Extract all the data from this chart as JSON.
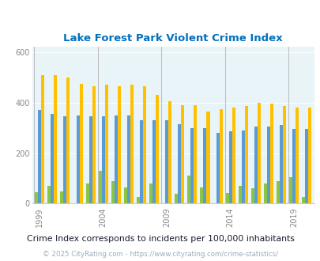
{
  "title": "Lake Forest Park Violent Crime Index",
  "subtitle": "Crime Index corresponds to incidents per 100,000 inhabitants",
  "footer": "© 2025 CityRating.com - https://www.cityrating.com/crime-statistics/",
  "years": [
    1999,
    2000,
    2001,
    2002,
    2003,
    2004,
    2005,
    2006,
    2007,
    2008,
    2009,
    2010,
    2011,
    2012,
    2013,
    2014,
    2015,
    2016,
    2017,
    2018,
    2019,
    2020
  ],
  "lake_forest_park": [
    45,
    70,
    48,
    0,
    80,
    130,
    90,
    65,
    25,
    80,
    0,
    40,
    110,
    65,
    0,
    43,
    70,
    60,
    80,
    90,
    105,
    25
  ],
  "washington": [
    370,
    355,
    345,
    350,
    345,
    345,
    350,
    350,
    330,
    330,
    330,
    315,
    300,
    300,
    280,
    285,
    290,
    305,
    305,
    310,
    295,
    295
  ],
  "national": [
    510,
    510,
    500,
    475,
    465,
    470,
    465,
    470,
    465,
    430,
    405,
    390,
    390,
    365,
    375,
    380,
    385,
    400,
    395,
    385,
    380,
    380
  ],
  "ylim": [
    0,
    620
  ],
  "yticks": [
    0,
    200,
    400,
    600
  ],
  "label_years": [
    1999,
    2004,
    2009,
    2014,
    2019
  ],
  "bar_colors": {
    "lake_forest_park": "#8cc641",
    "washington": "#5b9bd5",
    "national": "#ffc000"
  },
  "background_color": "#e8f4f8",
  "title_color": "#0070c0",
  "subtitle_color": "#1a1a2e",
  "footer_color": "#9aacbc",
  "grid_color": "#ffffff",
  "axis_tick_color": "#888888",
  "legend_label_color_lfp": "#5b8c00",
  "legend_label_color_wa": "#2060a0",
  "legend_label_color_nat": "#c07800"
}
